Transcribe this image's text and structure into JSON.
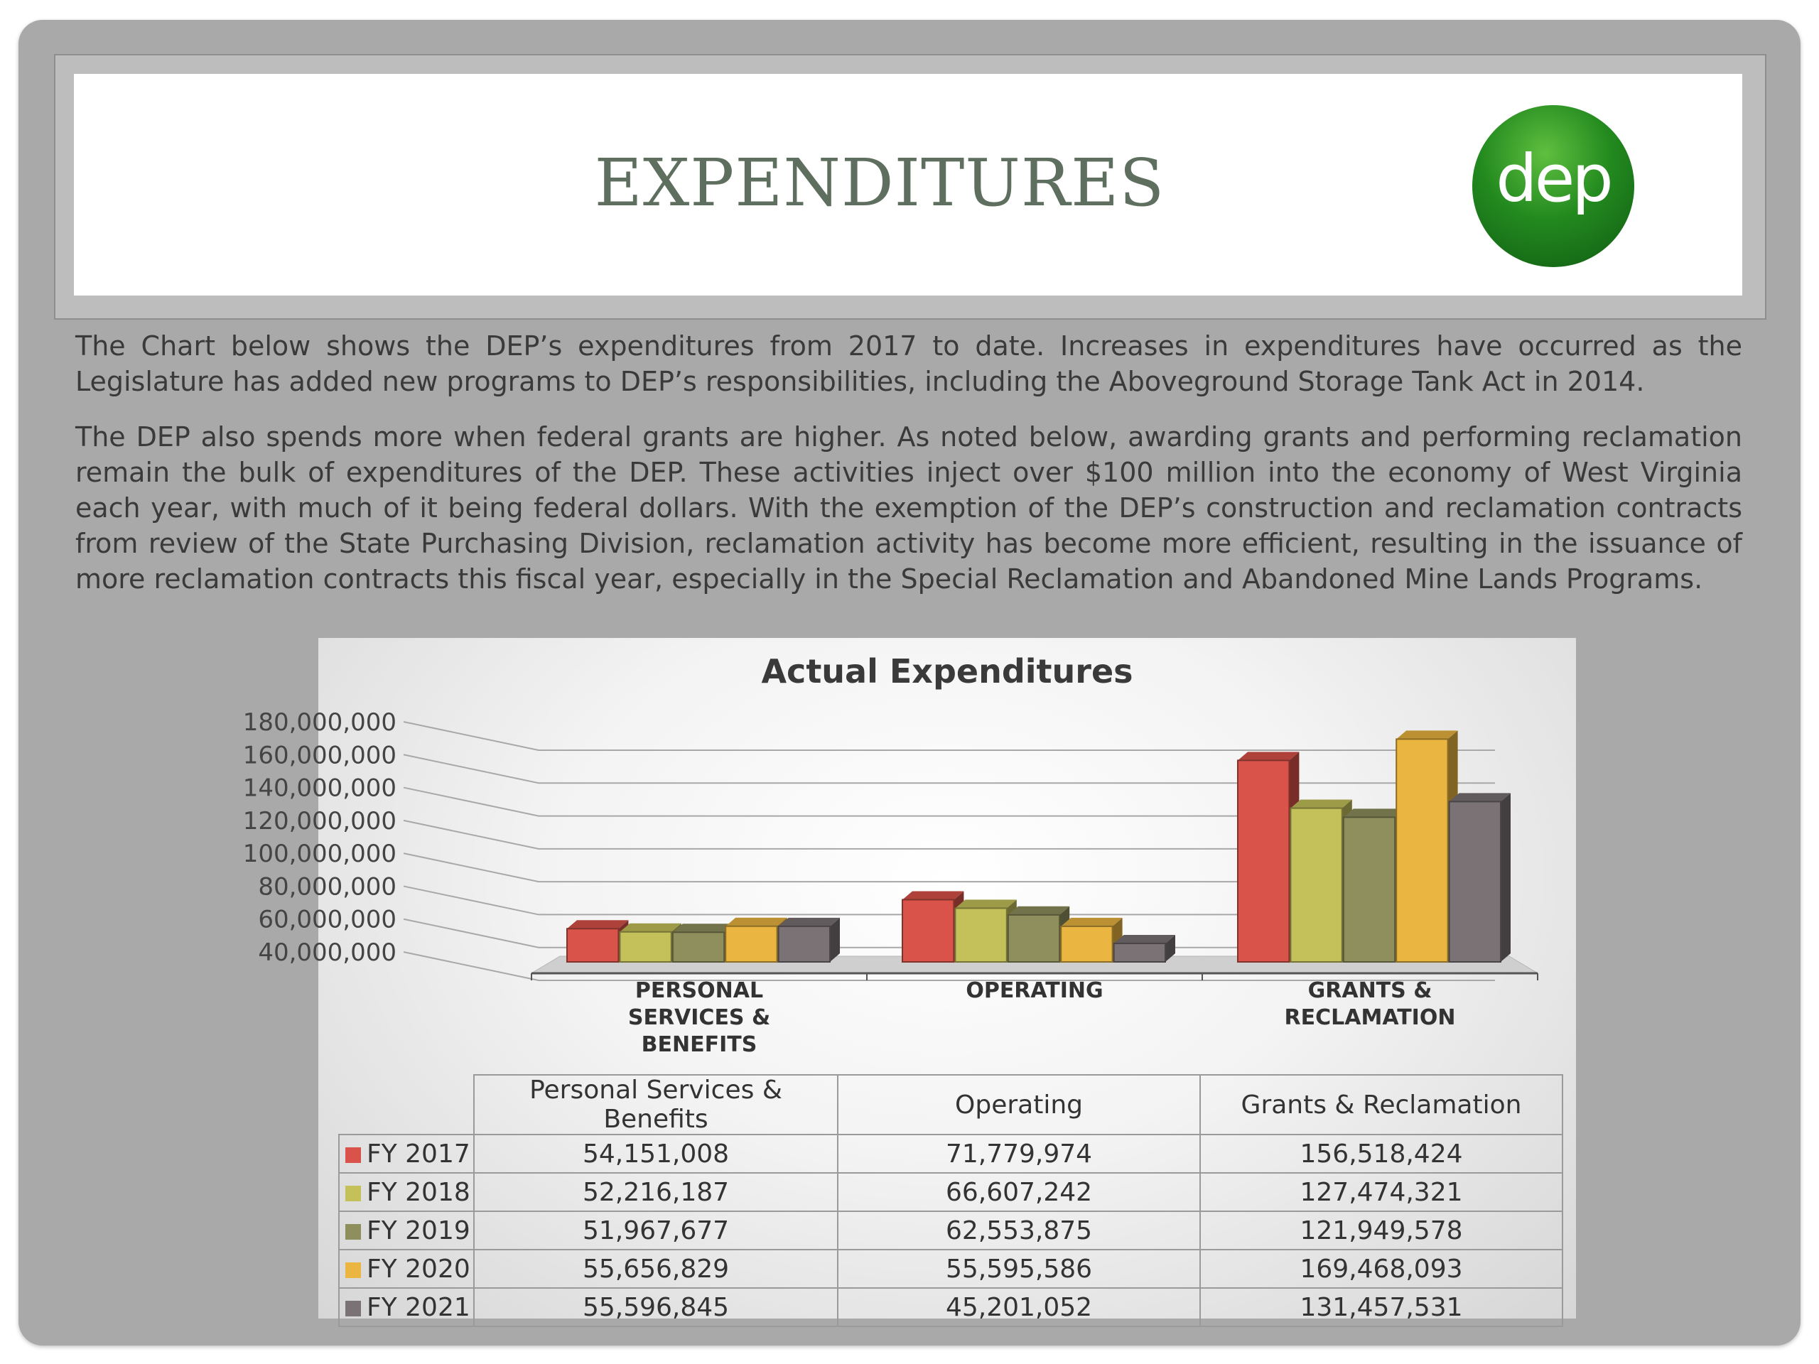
{
  "slide": {
    "title": "EXPENDITURES",
    "logo_text": "dep",
    "paragraph_1": "The Chart below shows the DEP’s expenditures from 2017 to date.  Increases in expenditures have occurred as the Legislature has added new programs to DEP’s responsibilities, including the Aboveground Storage Tank Act in 2014.",
    "paragraph_2": "The DEP also spends more when federal grants are higher.  As noted below, awarding grants and performing reclamation remain the bulk of expenditures of the DEP.  These activities inject over $100 million into the economy of West Virginia each year, with much of it being federal dollars.  With the exemption of the DEP’s construction and reclamation contracts from review of the State Purchasing Division, reclamation activity has become more efficient, resulting in the issuance of more reclamation contracts this fiscal year, especially in the Special Reclamation and Abandoned Mine Lands Programs."
  },
  "chart_data": {
    "type": "bar",
    "style": "3d-clustered-column",
    "title": "Actual Expenditures",
    "categories": [
      "PERSONAL SERVICES & BENEFITS",
      "OPERATING",
      "GRANTS & RECLAMATION"
    ],
    "category_lines": [
      [
        "PERSONAL",
        "SERVICES &",
        "BENEFITS"
      ],
      [
        "OPERATING"
      ],
      [
        "GRANTS &",
        "RECLAMATION"
      ]
    ],
    "table_headers": [
      "Personal Services & Benefits",
      "Operating",
      "Grants & Reclamation"
    ],
    "ylim": [
      40000000,
      180000000
    ],
    "yticks": [
      "180,000,000",
      "160,000,000",
      "140,000,000",
      "120,000,000",
      "100,000,000",
      "80,000,000",
      "60,000,000",
      "40,000,000"
    ],
    "grid": true,
    "legend": "data-table",
    "series": [
      {
        "name": "FY 2017",
        "color": "#d9534a",
        "values": [
          54151008,
          71779974,
          156518424
        ],
        "labels": [
          "54,151,008",
          "71,779,974",
          "156,518,424"
        ]
      },
      {
        "name": "FY 2018",
        "color": "#c4c05a",
        "values": [
          52216187,
          66607242,
          127474321
        ],
        "labels": [
          "52,216,187",
          "66,607,242",
          "127,474,321"
        ]
      },
      {
        "name": "FY 2019",
        "color": "#8f8f5e",
        "values": [
          51967677,
          62553875,
          121949578
        ],
        "labels": [
          "51,967,677",
          "62,553,875",
          "121,949,578"
        ]
      },
      {
        "name": "FY 2020",
        "color": "#eab540",
        "values": [
          55656829,
          55595586,
          169468093
        ],
        "labels": [
          "55,656,829",
          "55,595,586",
          "169,468,093"
        ]
      },
      {
        "name": "FY 2021",
        "color": "#7a7274",
        "values": [
          55596845,
          45201052,
          131457531
        ],
        "labels": [
          "55,596,845",
          "45,201,052",
          "131,457,531"
        ]
      }
    ]
  }
}
